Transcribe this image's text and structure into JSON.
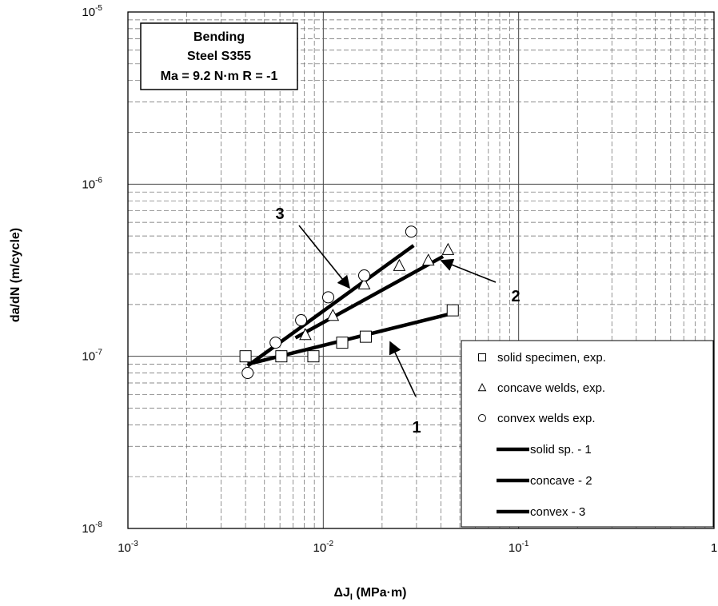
{
  "chart_data": {
    "type": "scatter",
    "title": "",
    "xlabel": "ΔJI (MPa·m)",
    "ylabel": "da/dN (m/cycle)",
    "x_scale": "log",
    "y_scale": "log",
    "xlim": [
      0.001,
      1
    ],
    "ylim": [
      1e-08,
      1e-05
    ],
    "grid": true,
    "x_ticks": [
      {
        "base": "10",
        "exp": "-3",
        "value": 0.001
      },
      {
        "base": "10",
        "exp": "-2",
        "value": 0.01
      },
      {
        "base": "10",
        "exp": "-1",
        "value": 0.1
      },
      {
        "base": "1",
        "exp": "",
        "value": 1
      }
    ],
    "y_ticks": [
      {
        "base": "10",
        "exp": "-8",
        "value": 1e-08
      },
      {
        "base": "10",
        "exp": "-7",
        "value": 1e-07
      },
      {
        "base": "10",
        "exp": "-6",
        "value": 1e-06
      },
      {
        "base": "10",
        "exp": "-5",
        "value": 1e-05
      }
    ],
    "info_box": [
      "Bending",
      "Steel S355",
      "Ma = 9.2 N·m R = -1"
    ],
    "legend_position": "bottom-right",
    "series": [
      {
        "name": "solid specimen, exp.",
        "marker": "square",
        "x": [
          0.004,
          0.0061,
          0.0089,
          0.0125,
          0.0165,
          0.046
        ],
        "y": [
          1e-07,
          1e-07,
          1e-07,
          1.2e-07,
          1.3e-07,
          1.85e-07
        ]
      },
      {
        "name": "concave welds, exp.",
        "marker": "triangle",
        "x": [
          0.0081,
          0.0112,
          0.0162,
          0.0245,
          0.0345,
          0.0435
        ],
        "y": [
          1.33e-07,
          1.72e-07,
          2.62e-07,
          3.35e-07,
          3.6e-07,
          4.15e-07
        ],
        "marker_labels": [
          "",
          "",
          "",
          "",
          "",
          ""
        ]
      },
      {
        "name": "convex welds exp.",
        "marker": "circle",
        "x": [
          0.0041,
          0.0057,
          0.0077,
          0.0106,
          0.0162,
          0.0282
        ],
        "y": [
          8e-08,
          1.2e-07,
          1.62e-07,
          2.2e-07,
          2.95e-07,
          5.3e-07
        ]
      },
      {
        "name": "solid sp. - 1",
        "line": true,
        "x": [
          0.0041,
          0.048
        ],
        "y": [
          9e-08,
          1.8e-07
        ]
      },
      {
        "name": "concave - 2",
        "line": true,
        "x": [
          0.0072,
          0.041
        ],
        "y": [
          1.28e-07,
          3.8e-07
        ]
      },
      {
        "name": "convex - 3",
        "line": true,
        "x": [
          0.0041,
          0.029
        ],
        "y": [
          8.8e-08,
          4.4e-07
        ]
      }
    ],
    "annotations": [
      {
        "text": "1",
        "points_to": "solid sp. - 1"
      },
      {
        "text": "2",
        "points_to": "concave - 2"
      },
      {
        "text": "3",
        "points_to": "convex - 3"
      }
    ]
  }
}
